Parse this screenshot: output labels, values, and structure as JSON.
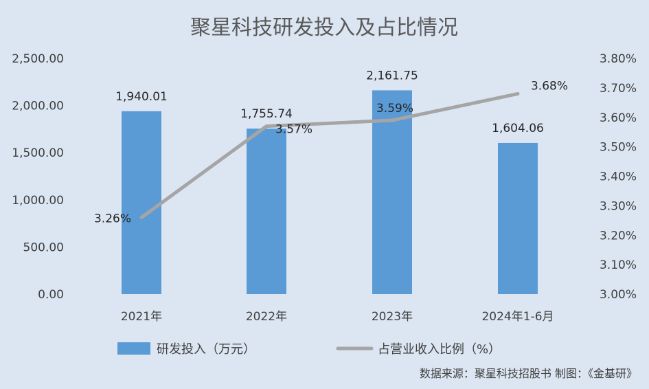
{
  "chart_data": {
    "type": "bar",
    "title": "聚星科技研发投入及占比情况",
    "categories": [
      "2021年",
      "2022年",
      "2023年",
      "2024年1-6月"
    ],
    "series": [
      {
        "name": "研发投入（万元）",
        "type": "bar",
        "axis": "left",
        "values": [
          1940.01,
          1755.74,
          2161.75,
          1604.06
        ],
        "labels": [
          "1,940.01",
          "1,755.74",
          "2,161.75",
          "1,604.06"
        ],
        "color": "#5b9bd5"
      },
      {
        "name": "占营业收入比例（%）",
        "type": "line",
        "axis": "right",
        "values": [
          3.26,
          3.57,
          3.59,
          3.68
        ],
        "labels": [
          "3.26%",
          "3.57%",
          "3.59%",
          "3.68%"
        ],
        "color": "#a5a5a5"
      }
    ],
    "y_left": {
      "ylim": [
        0,
        2500
      ],
      "ticks": [
        "0.00",
        "500.00",
        "1,000.00",
        "1,500.00",
        "2,000.00",
        "2,500.00"
      ]
    },
    "y_right": {
      "ylim": [
        3.0,
        3.8
      ],
      "ticks": [
        "3.00%",
        "3.10%",
        "3.20%",
        "3.30%",
        "3.40%",
        "3.50%",
        "3.60%",
        "3.70%",
        "3.80%"
      ]
    },
    "grid": false,
    "legend_position": "bottom"
  },
  "source_note": "数据来源：聚星科技招股书  制图：《金基研》",
  "colors": {
    "background": "#dce6f2",
    "bar": "#5b9bd5",
    "line": "#a5a5a5"
  }
}
